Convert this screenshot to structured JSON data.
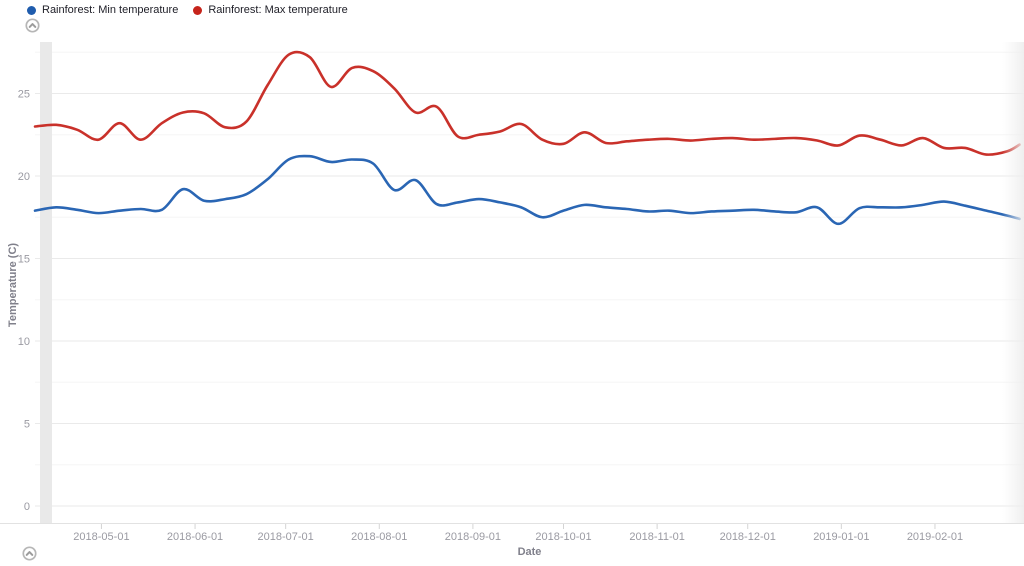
{
  "legend": {
    "items": [
      {
        "label": "Rainforest: Min temperature",
        "color": "#1f5cad"
      },
      {
        "label": "Rainforest: Max temperature",
        "color": "#c6241b"
      }
    ]
  },
  "controls": {
    "top_collapse_icon": "chevron-up",
    "bottom_collapse_icon": "chevron-up"
  },
  "chart_data": {
    "type": "line",
    "title": "",
    "xlabel": "Date",
    "ylabel": "Temperature (C)",
    "x_tick_labels": [
      "2018-05-01",
      "2018-06-01",
      "2018-07-01",
      "2018-08-01",
      "2018-09-01",
      "2018-10-01",
      "2018-11-01",
      "2018-12-01",
      "2019-01-01",
      "2019-02-01"
    ],
    "y_tick_values": [
      0,
      5,
      10,
      15,
      20,
      25
    ],
    "ylim": [
      -1,
      28.2
    ],
    "x_range": [
      "2018-04-09",
      "2019-03-01"
    ],
    "grid": {
      "horizontal": true,
      "minor_step": 2.5,
      "major_step": 5
    },
    "x": [
      "2018-04-09",
      "2018-04-16",
      "2018-04-23",
      "2018-04-30",
      "2018-05-07",
      "2018-05-14",
      "2018-05-21",
      "2018-05-28",
      "2018-06-04",
      "2018-06-11",
      "2018-06-18",
      "2018-06-25",
      "2018-07-02",
      "2018-07-09",
      "2018-07-16",
      "2018-07-23",
      "2018-07-30",
      "2018-08-06",
      "2018-08-13",
      "2018-08-20",
      "2018-08-27",
      "2018-09-03",
      "2018-09-10",
      "2018-09-17",
      "2018-09-24",
      "2018-10-01",
      "2018-10-08",
      "2018-10-15",
      "2018-10-22",
      "2018-10-29",
      "2018-11-05",
      "2018-11-12",
      "2018-11-19",
      "2018-11-26",
      "2018-12-03",
      "2018-12-10",
      "2018-12-17",
      "2018-12-24",
      "2018-12-31",
      "2019-01-07",
      "2019-01-14",
      "2019-01-21",
      "2019-01-28",
      "2019-02-04",
      "2019-02-11",
      "2019-02-18",
      "2019-02-25",
      "2019-03-01"
    ],
    "series": [
      {
        "name": "Rainforest: Min temperature",
        "color": "#2a66b4",
        "values": [
          17.9,
          18.1,
          17.95,
          17.75,
          17.9,
          18.0,
          17.95,
          19.2,
          18.5,
          18.6,
          18.9,
          19.8,
          21.0,
          21.2,
          20.85,
          21.0,
          20.75,
          19.15,
          19.75,
          18.3,
          18.4,
          18.6,
          18.4,
          18.1,
          17.5,
          17.9,
          18.25,
          18.1,
          18.0,
          17.85,
          17.9,
          17.75,
          17.85,
          17.9,
          17.95,
          17.85,
          17.8,
          18.1,
          17.1,
          18.05,
          18.1,
          18.1,
          18.25,
          18.45,
          18.2,
          17.9,
          17.6,
          17.4
        ]
      },
      {
        "name": "Rainforest: Max temperature",
        "color": "#c9312a",
        "values": [
          23.0,
          23.1,
          22.8,
          22.2,
          23.2,
          22.2,
          23.2,
          23.85,
          23.8,
          22.95,
          23.3,
          25.5,
          27.35,
          27.2,
          25.4,
          26.55,
          26.35,
          25.3,
          23.85,
          24.2,
          22.4,
          22.5,
          22.7,
          23.15,
          22.2,
          21.95,
          22.65,
          22.0,
          22.1,
          22.2,
          22.25,
          22.15,
          22.25,
          22.3,
          22.2,
          22.25,
          22.3,
          22.15,
          21.85,
          22.45,
          22.2,
          21.85,
          22.3,
          21.7,
          21.7,
          21.3,
          21.5,
          21.9
        ]
      }
    ]
  }
}
